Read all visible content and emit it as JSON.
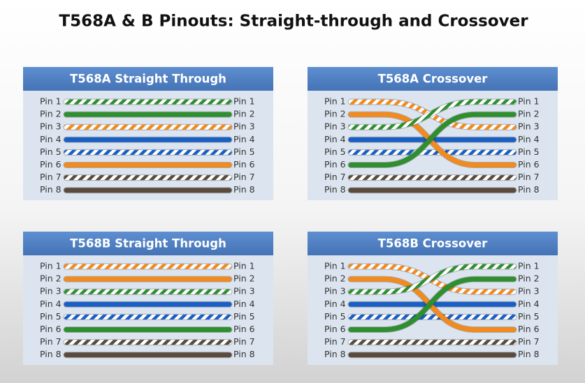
{
  "title": "T568A & B Pinouts: Straight-through and Crossover",
  "panels": [
    {
      "title": "T568A Straight Through",
      "left_pins": [
        "Pin 1",
        "Pin 2",
        "Pin 3",
        "Pin 4",
        "Pin 5",
        "Pin 6",
        "Pin 7",
        "Pin 8"
      ],
      "right_pins": [
        "Pin 1",
        "Pin 2",
        "Pin 3",
        "Pin 4",
        "Pin 5",
        "Pin 6",
        "Pin 7",
        "Pin 8"
      ]
    },
    {
      "title": "T568A Crossover",
      "left_pins": [
        "Pin 1",
        "Pin 2",
        "Pin 3",
        "Pin 4",
        "Pin 5",
        "Pin 6",
        "Pin 7",
        "Pin 8"
      ],
      "right_pins": [
        "Pin 1",
        "Pin 2",
        "Pin 3",
        "Pin 4",
        "Pin 5",
        "Pin 6",
        "Pin 7",
        "Pin 8"
      ]
    },
    {
      "title": "T568B Straight Through",
      "left_pins": [
        "Pin 1",
        "Pin 2",
        "Pin 3",
        "Pin 4",
        "Pin 5",
        "Pin 6",
        "Pin 7",
        "Pin 8"
      ],
      "right_pins": [
        "Pin 1",
        "Pin 2",
        "Pin 3",
        "Pin 4",
        "Pin 5",
        "Pin 6",
        "Pin 7",
        "Pin 8"
      ]
    },
    {
      "title": "T568B Crossover",
      "left_pins": [
        "Pin 1",
        "Pin 2",
        "Pin 3",
        "Pin 4",
        "Pin 5",
        "Pin 6",
        "Pin 7",
        "Pin 8"
      ],
      "right_pins": [
        "Pin 1",
        "Pin 2",
        "Pin 3",
        "Pin 4",
        "Pin 5",
        "Pin 6",
        "Pin 7",
        "Pin 8"
      ]
    }
  ]
}
